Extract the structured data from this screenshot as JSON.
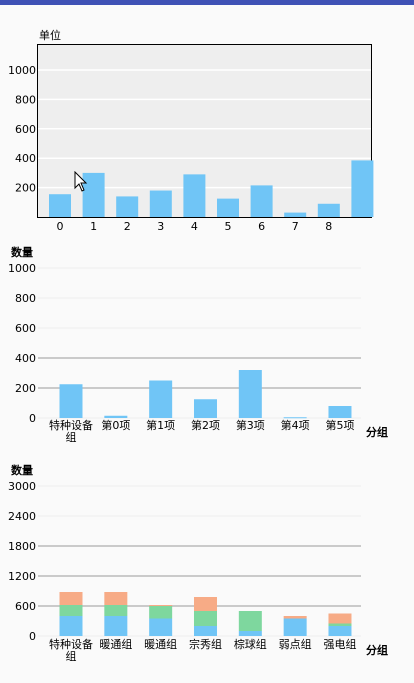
{
  "chart_data": [
    {
      "type": "bar",
      "title": "",
      "ylabel": "单位",
      "xlabel": "",
      "categories": [
        "0",
        "1",
        "2",
        "3",
        "4",
        "5",
        "6",
        "7",
        "8",
        ""
      ],
      "values": [
        155,
        300,
        140,
        180,
        290,
        125,
        215,
        30,
        90,
        385
      ],
      "ylim": [
        0,
        1170
      ],
      "yticks": [
        200,
        400,
        600,
        800,
        1000
      ],
      "ytick_labels": [
        "200",
        "400",
        "600",
        "800",
        "1000"
      ],
      "grid": true,
      "colors": [
        "#70c5f6"
      ],
      "background": "#eeeeee"
    },
    {
      "type": "bar",
      "title": "",
      "ylabel": "数量",
      "xlabel": "分组",
      "categories": [
        "特种设备组",
        "第0项",
        "第1项",
        "第2项",
        "第3项",
        "第4项",
        "第5项"
      ],
      "values": [
        225,
        15,
        250,
        125,
        320,
        5,
        80
      ],
      "ylim": [
        0,
        1000
      ],
      "yticks": [
        0,
        200,
        400,
        600,
        800,
        1000
      ],
      "ytick_labels": [
        "0",
        "200",
        "400",
        "600",
        "800",
        "1000"
      ],
      "grid": true,
      "colors": [
        "#70c5f6"
      ]
    },
    {
      "type": "bar",
      "stacked": true,
      "title": "",
      "ylabel": "数量",
      "xlabel": "分组",
      "categories": [
        "特种设备组",
        "暖通组",
        "暖通组",
        "宗秀组",
        "棕球组",
        "弱点组",
        "强电组"
      ],
      "series": [
        {
          "values": [
            400,
            400,
            350,
            200,
            100,
            350,
            200
          ]
        },
        {
          "values": [
            220,
            220,
            250,
            300,
            400,
            0,
            50
          ]
        },
        {
          "values": [
            260,
            260,
            20,
            280,
            0,
            50,
            200
          ]
        }
      ],
      "ylim": [
        0,
        3000
      ],
      "yticks": [
        0,
        600,
        1200,
        1800,
        2400,
        3000
      ],
      "ytick_labels": [
        "0",
        "600",
        "1200",
        "1800",
        "2400",
        "3000"
      ],
      "grid": true,
      "colors": [
        "#70c5f6",
        "#7ed79e",
        "#f7ab86"
      ]
    }
  ]
}
